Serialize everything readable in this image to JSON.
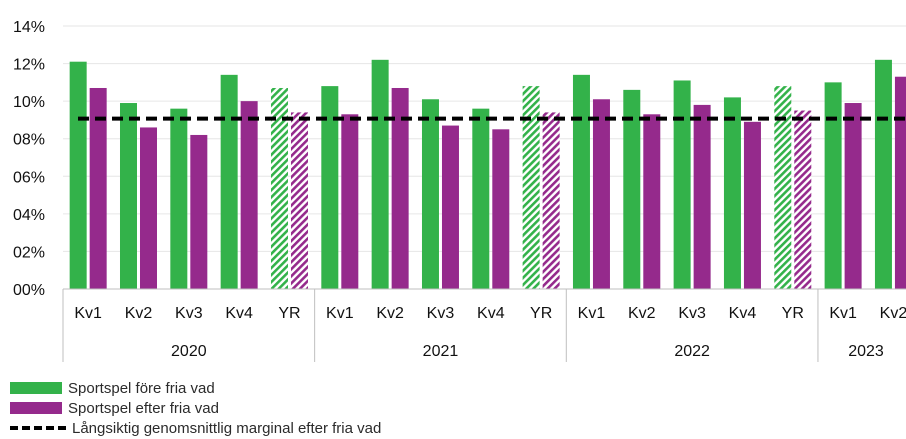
{
  "chart_data": {
    "type": "bar",
    "ylim": [
      0,
      0.14
    ],
    "yticks": [
      "00%",
      "02%",
      "04%",
      "06%",
      "08%",
      "10%",
      "12%",
      "14%"
    ],
    "categories": [
      "Kv1",
      "Kv2",
      "Kv3",
      "Kv4",
      "YR",
      "Kv1",
      "Kv2",
      "Kv3",
      "Kv4",
      "YR",
      "Kv1",
      "Kv2",
      "Kv3",
      "Kv4",
      "YR",
      "Kv1",
      "Kv2"
    ],
    "category_hatched": [
      false,
      false,
      false,
      false,
      true,
      false,
      false,
      false,
      false,
      true,
      false,
      false,
      false,
      false,
      true,
      false,
      false
    ],
    "years": [
      {
        "label": "2020",
        "count": 5
      },
      {
        "label": "2021",
        "count": 5
      },
      {
        "label": "2022",
        "count": 5
      },
      {
        "label": "2023",
        "count": 2
      }
    ],
    "series": [
      {
        "name": "Sportspel före fria vad",
        "color": "#33b24a",
        "values": [
          0.121,
          0.099,
          0.096,
          0.114,
          0.107,
          0.108,
          0.122,
          0.101,
          0.096,
          0.108,
          0.114,
          0.106,
          0.111,
          0.102,
          0.108,
          0.11,
          0.122
        ]
      },
      {
        "name": "Sportspel efter fria vad",
        "color": "#952a8c",
        "values": [
          0.107,
          0.086,
          0.082,
          0.1,
          0.094,
          0.093,
          0.107,
          0.087,
          0.085,
          0.094,
          0.101,
          0.093,
          0.098,
          0.089,
          0.095,
          0.099,
          0.113
        ]
      }
    ],
    "reference_line": {
      "name": "Långsiktig genomsnittlig marginal efter fria vad",
      "value": 0.096,
      "color": "#000000"
    },
    "grid": true,
    "legend_position": "bottom-left"
  }
}
